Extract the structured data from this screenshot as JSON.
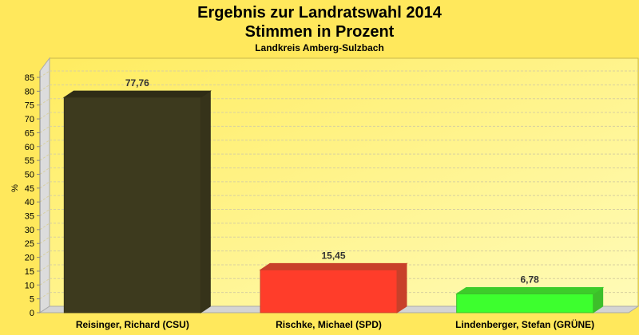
{
  "chart_data": {
    "type": "bar",
    "title": "Ergebnis zur Landratswahl 2014",
    "title_line2": "Stimmen in Prozent",
    "subtitle": "Landkreis Amberg-Sulzbach",
    "ylabel": "%",
    "xlabel": "",
    "ylim": [
      0,
      85
    ],
    "yticks": [
      0,
      5,
      10,
      15,
      20,
      25,
      30,
      35,
      40,
      45,
      50,
      55,
      60,
      65,
      70,
      75,
      80,
      85
    ],
    "grid": true,
    "style": "3d",
    "categories": [
      "Reisinger, Richard (CSU)",
      "Rischke, Michael (SPD)",
      "Lindenberger, Stefan (GRÜNE)"
    ],
    "values": [
      77.76,
      15.45,
      6.78
    ],
    "data_labels": [
      "77,76",
      "15,45",
      "6,78"
    ],
    "colors": [
      "#3d3a1e",
      "#ff3d2a",
      "#3dff2e"
    ],
    "side_colors": [
      "#36331a",
      "#c8402a",
      "#3dbf2a"
    ],
    "top_colors": [
      "#2f2c16",
      "#c8402a",
      "#3dcc2a"
    ],
    "background": "#ffe85c",
    "plot_background": "#fff8a0"
  }
}
